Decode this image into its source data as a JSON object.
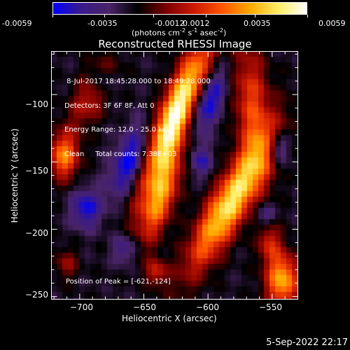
{
  "chart_data": {
    "type": "heatmap",
    "title": "Reconstructed RHESSI Image",
    "colorbar": {
      "range": [
        -0.0059,
        0.0059
      ],
      "tick_labels": [
        "-0.0059",
        "-0.0035",
        "-0.0012",
        "0.0012",
        "0.0035",
        "0.0059"
      ],
      "unit_parts": [
        "(photons cm",
        "-2",
        " s",
        "-1",
        " asec",
        "-2",
        ")"
      ],
      "colors": [
        "#0000ff",
        "#3a1a8a",
        "#4a2466",
        "#000000",
        "#7a0000",
        "#cc1800",
        "#ff5500",
        "#ffaa00",
        "#ffee66",
        "#ffffff"
      ]
    },
    "xlabel": "Heliocentric X (arcsec)",
    "ylabel": "Heliocentric Y (arcsec)",
    "xlim": [
      -722,
      -530
    ],
    "ylim": [
      -252,
      -68
    ],
    "x_ticks": [
      -700,
      -650,
      -600,
      -550
    ],
    "y_ticks": [
      -100,
      -150,
      -200,
      -250
    ],
    "x_tick_labels": [
      "−700",
      "−650",
      "−600",
      "−550"
    ],
    "y_tick_labels": [
      "−100",
      "−150",
      "−200",
      "−250"
    ],
    "annotations": [
      " 8-Jul-2017 18:45:28.000 to 18:49:28.000",
      "Detectors: 3F 6F 8F, Att 0",
      "Energy Range: 12.0 - 25.0 keV",
      "Clean     Total counts: 7.38E+03"
    ],
    "peak_text": "Position of Peak = [-621,-124]",
    "peak": [
      -621,
      -124
    ],
    "sources": [
      {
        "x": -625,
        "y": -116,
        "sx": 9,
        "sy": 42,
        "theta": 0.42,
        "amp": 1.0
      },
      {
        "x": -637,
        "y": -178,
        "sx": 8,
        "sy": 24,
        "theta": 0.35,
        "amp": 0.6
      },
      {
        "x": -582,
        "y": -180,
        "sx": 10,
        "sy": 40,
        "theta": 0.55,
        "amp": 0.85
      },
      {
        "x": -565,
        "y": -110,
        "sx": 10,
        "sy": 35,
        "theta": -0.1,
        "amp": 0.45
      },
      {
        "x": -712,
        "y": -146,
        "sx": 8,
        "sy": 12,
        "theta": 0,
        "amp": 0.6
      },
      {
        "x": -690,
        "y": -100,
        "sx": 9,
        "sy": 20,
        "theta": 0.5,
        "amp": 0.35
      },
      {
        "x": -542,
        "y": -238,
        "sx": 9,
        "sy": 14,
        "theta": 0,
        "amp": 0.7
      },
      {
        "x": -552,
        "y": -210,
        "sx": 6,
        "sy": 10,
        "theta": 0,
        "amp": 0.35
      },
      {
        "x": -640,
        "y": -232,
        "sx": 6,
        "sy": 7,
        "theta": 0,
        "amp": 0.35
      },
      {
        "x": -710,
        "y": -226,
        "sx": 6,
        "sy": 8,
        "theta": 0,
        "amp": 0.25
      },
      {
        "x": -682,
        "y": -92,
        "sx": 7,
        "sy": 7,
        "theta": 0,
        "amp": -0.3
      },
      {
        "x": -660,
        "y": -150,
        "sx": 9,
        "sy": 20,
        "theta": 0.4,
        "amp": -0.45
      },
      {
        "x": -600,
        "y": -105,
        "sx": 8,
        "sy": 18,
        "theta": 0.4,
        "amp": -0.45
      },
      {
        "x": -605,
        "y": -150,
        "sx": 6,
        "sy": 8,
        "theta": 0,
        "amp": -0.3
      },
      {
        "x": -695,
        "y": -185,
        "sx": 8,
        "sy": 10,
        "theta": 0,
        "amp": -0.4
      },
      {
        "x": -545,
        "y": -140,
        "sx": 6,
        "sy": 8,
        "theta": 0,
        "amp": -0.35
      },
      {
        "x": -665,
        "y": -215,
        "sx": 7,
        "sy": 8,
        "theta": 0,
        "amp": -0.3
      },
      {
        "x": -555,
        "y": -190,
        "sx": 5,
        "sy": 6,
        "theta": 0,
        "amp": -0.25
      }
    ]
  },
  "timestamp": "5-Sep-2022 22:17"
}
